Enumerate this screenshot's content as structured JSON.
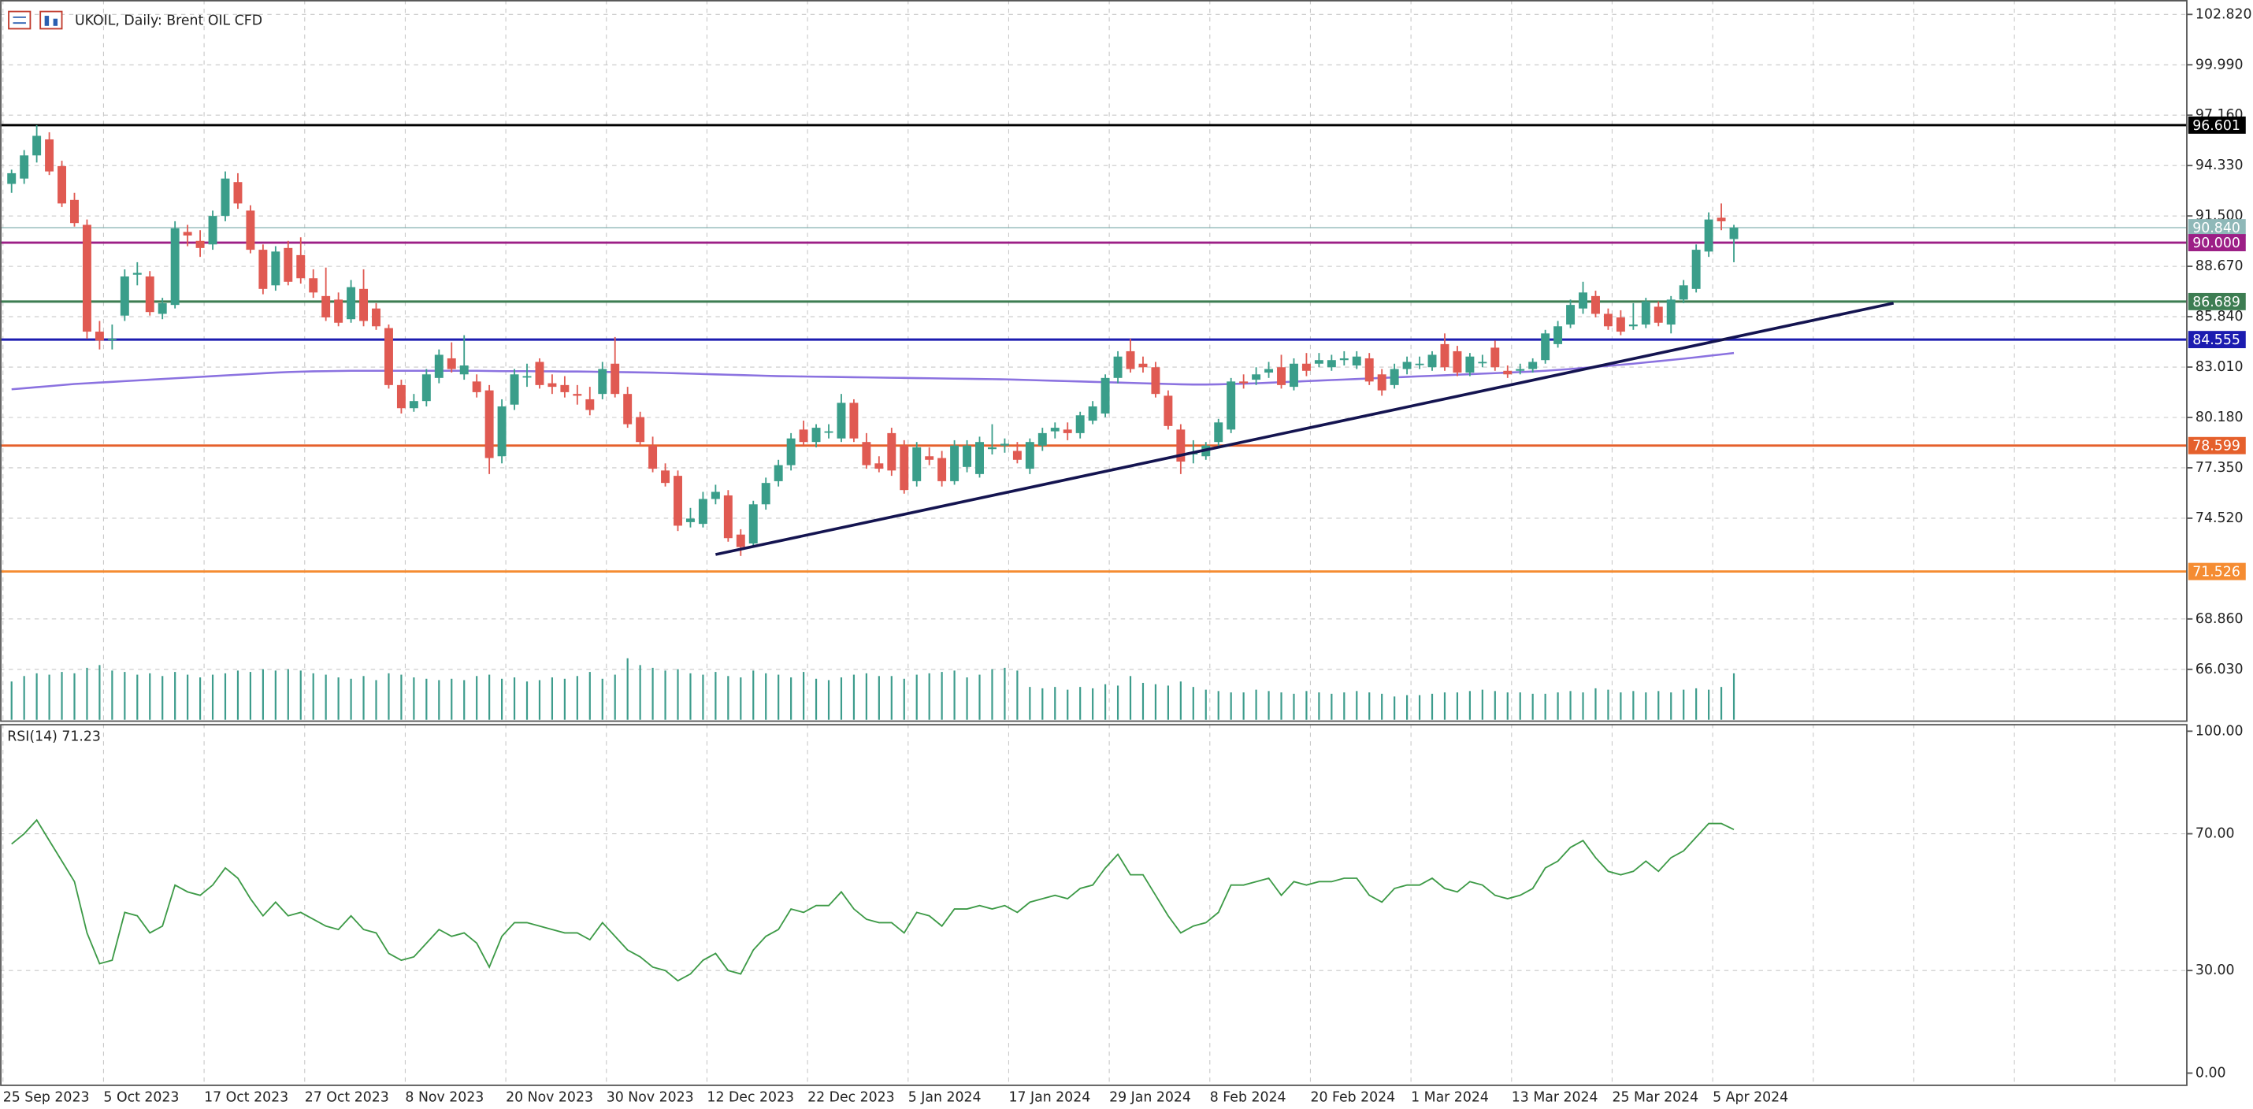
{
  "chart_data": {
    "type": "candlestick",
    "title": "UKOIL, Daily:  Brent OIL CFD",
    "up_color": "#3a9e8a",
    "down_color": "#e05a52",
    "volume_color": "#3d9c8c",
    "ma_color": "#8b72e0",
    "grid": true,
    "ylim": [
      63.12,
      103.63
    ],
    "yticks": [
      {
        "value": 102.82,
        "label": "102.820"
      },
      {
        "value": 99.99,
        "label": "99.990"
      },
      {
        "value": 97.16,
        "label": "97.160"
      },
      {
        "value": 94.33,
        "label": "94.330"
      },
      {
        "value": 91.5,
        "label": "91.500"
      },
      {
        "value": 88.67,
        "label": "88.670"
      },
      {
        "value": 85.84,
        "label": "85.840"
      },
      {
        "value": 83.01,
        "label": "83.010"
      },
      {
        "value": 80.18,
        "label": "80.180"
      },
      {
        "value": 77.35,
        "label": "77.350"
      },
      {
        "value": 74.52,
        "label": "74.520"
      },
      {
        "value": 68.86,
        "label": "68.860"
      },
      {
        "value": 66.03,
        "label": "66.030"
      }
    ],
    "categories": [
      "25 Sep 2023",
      null,
      null,
      null,
      null,
      null,
      null,
      null,
      "5 Oct 2023",
      null,
      null,
      null,
      null,
      null,
      null,
      null,
      "17 Oct 2023",
      null,
      null,
      null,
      null,
      null,
      null,
      null,
      "27 Oct 2023",
      null,
      null,
      null,
      null,
      null,
      null,
      null,
      "8 Nov 2023",
      null,
      null,
      null,
      null,
      null,
      null,
      null,
      "20 Nov 2023",
      null,
      null,
      null,
      null,
      null,
      null,
      null,
      "30 Nov 2023",
      null,
      null,
      null,
      null,
      null,
      null,
      null,
      "12 Dec 2023",
      null,
      null,
      null,
      null,
      null,
      null,
      null,
      "22 Dec 2023",
      null,
      null,
      null,
      null,
      null,
      null,
      null,
      "5 Jan 2024",
      null,
      null,
      null,
      null,
      null,
      null,
      null,
      "17 Jan 2024",
      null,
      null,
      null,
      null,
      null,
      null,
      null,
      "29 Jan 2024",
      null,
      null,
      null,
      null,
      null,
      null,
      null,
      "8 Feb 2024",
      null,
      null,
      null,
      null,
      null,
      null,
      null,
      "20 Feb 2024",
      null,
      null,
      null,
      null,
      null,
      null,
      null,
      "1 Mar 2024",
      null,
      null,
      null,
      null,
      null,
      null,
      null,
      "13 Mar 2024",
      null,
      null,
      null,
      null,
      null,
      null,
      null,
      "25 Mar 2024",
      null,
      null,
      null,
      null,
      null,
      null,
      null,
      "5 Apr 2024",
      null
    ],
    "ohlc": [
      [
        93.3,
        94.1,
        92.8,
        93.9
      ],
      [
        93.6,
        95.2,
        93.3,
        94.9
      ],
      [
        94.9,
        96.6,
        94.5,
        96.0
      ],
      [
        95.8,
        96.2,
        93.8,
        94.0
      ],
      [
        94.3,
        94.6,
        92.0,
        92.2
      ],
      [
        92.4,
        92.8,
        90.9,
        91.1
      ],
      [
        91.0,
        91.3,
        84.6,
        85.0
      ],
      [
        85.0,
        85.6,
        84.0,
        84.5
      ],
      [
        84.6,
        85.4,
        84.0,
        84.6
      ],
      [
        85.9,
        88.5,
        85.6,
        88.1
      ],
      [
        88.2,
        88.9,
        87.6,
        88.3
      ],
      [
        88.1,
        88.4,
        85.9,
        86.1
      ],
      [
        86.0,
        86.9,
        85.7,
        86.6
      ],
      [
        86.5,
        91.2,
        86.3,
        90.8
      ],
      [
        90.6,
        91.0,
        89.8,
        90.4
      ],
      [
        90.1,
        90.7,
        89.2,
        89.7
      ],
      [
        89.9,
        91.8,
        89.6,
        91.5
      ],
      [
        91.5,
        94.0,
        91.2,
        93.6
      ],
      [
        93.4,
        93.9,
        91.9,
        92.2
      ],
      [
        91.8,
        92.1,
        89.4,
        89.6
      ],
      [
        89.6,
        89.9,
        87.1,
        87.4
      ],
      [
        87.6,
        89.8,
        87.3,
        89.5
      ],
      [
        89.7,
        90.1,
        87.6,
        87.8
      ],
      [
        89.3,
        90.3,
        87.7,
        88.0
      ],
      [
        88.0,
        88.5,
        86.9,
        87.2
      ],
      [
        87.0,
        88.6,
        85.6,
        85.8
      ],
      [
        86.8,
        87.2,
        85.3,
        85.5
      ],
      [
        85.7,
        87.9,
        85.5,
        87.5
      ],
      [
        87.4,
        88.5,
        85.3,
        85.6
      ],
      [
        86.3,
        86.6,
        85.1,
        85.3
      ],
      [
        85.2,
        85.4,
        81.8,
        82.0
      ],
      [
        82.0,
        82.3,
        80.4,
        80.7
      ],
      [
        80.7,
        81.5,
        80.5,
        81.1
      ],
      [
        81.1,
        82.9,
        80.8,
        82.6
      ],
      [
        82.4,
        84.0,
        82.1,
        83.7
      ],
      [
        83.5,
        84.4,
        82.7,
        82.9
      ],
      [
        82.6,
        84.8,
        82.3,
        83.1
      ],
      [
        82.2,
        82.6,
        81.3,
        81.6
      ],
      [
        81.7,
        82.0,
        77.0,
        77.9
      ],
      [
        78.0,
        81.2,
        77.6,
        80.8
      ],
      [
        80.9,
        82.9,
        80.6,
        82.6
      ],
      [
        82.5,
        83.2,
        81.9,
        82.5
      ],
      [
        83.3,
        83.5,
        81.8,
        82.0
      ],
      [
        82.1,
        82.6,
        81.5,
        81.9
      ],
      [
        82.0,
        82.5,
        81.3,
        81.6
      ],
      [
        81.5,
        82.0,
        80.9,
        81.4
      ],
      [
        81.2,
        81.9,
        80.3,
        80.6
      ],
      [
        81.5,
        83.3,
        81.2,
        82.9
      ],
      [
        83.2,
        84.7,
        81.3,
        81.5
      ],
      [
        81.5,
        81.9,
        79.6,
        79.8
      ],
      [
        80.2,
        80.5,
        78.6,
        78.8
      ],
      [
        78.6,
        79.1,
        77.1,
        77.3
      ],
      [
        77.2,
        77.6,
        76.3,
        76.5
      ],
      [
        76.9,
        77.2,
        73.8,
        74.1
      ],
      [
        74.3,
        75.1,
        74.0,
        74.5
      ],
      [
        74.2,
        76.0,
        74.0,
        75.6
      ],
      [
        75.6,
        76.4,
        75.3,
        76.0
      ],
      [
        75.8,
        76.1,
        73.2,
        73.4
      ],
      [
        73.6,
        73.9,
        72.4,
        72.9
      ],
      [
        73.1,
        75.5,
        72.9,
        75.3
      ],
      [
        75.3,
        76.8,
        75.0,
        76.5
      ],
      [
        76.6,
        77.8,
        76.3,
        77.5
      ],
      [
        77.5,
        79.3,
        77.2,
        79.0
      ],
      [
        79.5,
        80.0,
        78.6,
        78.8
      ],
      [
        78.8,
        79.8,
        78.5,
        79.6
      ],
      [
        79.4,
        79.8,
        79.0,
        79.4
      ],
      [
        79.0,
        81.5,
        78.8,
        81.0
      ],
      [
        81.0,
        81.2,
        78.8,
        79.0
      ],
      [
        78.8,
        79.3,
        77.3,
        77.5
      ],
      [
        77.6,
        78.0,
        77.1,
        77.3
      ],
      [
        79.3,
        79.6,
        76.9,
        77.2
      ],
      [
        78.6,
        78.9,
        75.9,
        76.1
      ],
      [
        76.6,
        78.8,
        76.3,
        78.5
      ],
      [
        78.0,
        78.5,
        77.5,
        77.8
      ],
      [
        77.9,
        78.3,
        76.3,
        76.6
      ],
      [
        76.6,
        78.9,
        76.4,
        78.6
      ],
      [
        77.4,
        78.9,
        77.1,
        78.6
      ],
      [
        77.0,
        79.1,
        76.8,
        78.8
      ],
      [
        78.4,
        79.8,
        78.1,
        78.5
      ],
      [
        78.6,
        79.0,
        78.2,
        78.7
      ],
      [
        78.3,
        78.8,
        77.6,
        77.8
      ],
      [
        77.3,
        79.0,
        77.0,
        78.8
      ],
      [
        78.6,
        79.6,
        78.3,
        79.3
      ],
      [
        79.4,
        79.9,
        79.0,
        79.6
      ],
      [
        79.5,
        79.9,
        78.9,
        79.3
      ],
      [
        79.3,
        80.5,
        79.0,
        80.3
      ],
      [
        80.0,
        81.1,
        79.8,
        80.8
      ],
      [
        80.4,
        82.6,
        80.2,
        82.4
      ],
      [
        82.4,
        83.9,
        82.1,
        83.6
      ],
      [
        83.9,
        84.6,
        82.7,
        82.9
      ],
      [
        83.2,
        83.6,
        82.7,
        83.0
      ],
      [
        83.0,
        83.3,
        81.3,
        81.5
      ],
      [
        81.4,
        81.7,
        79.5,
        79.7
      ],
      [
        79.5,
        79.8,
        77.0,
        77.7
      ],
      [
        78.1,
        78.9,
        77.6,
        78.2
      ],
      [
        78.0,
        78.8,
        77.8,
        78.6
      ],
      [
        78.8,
        80.1,
        78.5,
        79.9
      ],
      [
        79.5,
        82.4,
        79.3,
        82.2
      ],
      [
        82.2,
        82.6,
        81.8,
        82.1
      ],
      [
        82.3,
        83.0,
        82.0,
        82.6
      ],
      [
        82.7,
        83.3,
        82.4,
        82.9
      ],
      [
        83.0,
        83.7,
        81.8,
        82.0
      ],
      [
        81.9,
        83.5,
        81.7,
        83.2
      ],
      [
        83.2,
        83.8,
        82.5,
        82.8
      ],
      [
        83.2,
        83.8,
        83.0,
        83.4
      ],
      [
        83.0,
        83.7,
        82.8,
        83.4
      ],
      [
        83.4,
        83.9,
        83.1,
        83.5
      ],
      [
        83.1,
        83.9,
        82.9,
        83.6
      ],
      [
        83.5,
        83.8,
        82.0,
        82.2
      ],
      [
        82.6,
        82.9,
        81.4,
        81.7
      ],
      [
        82.0,
        83.2,
        81.8,
        82.9
      ],
      [
        82.9,
        83.6,
        82.6,
        83.3
      ],
      [
        83.2,
        83.6,
        82.9,
        83.2
      ],
      [
        83.0,
        83.9,
        82.8,
        83.7
      ],
      [
        84.3,
        84.9,
        82.8,
        83.0
      ],
      [
        83.9,
        84.2,
        82.5,
        82.7
      ],
      [
        82.7,
        83.8,
        82.5,
        83.6
      ],
      [
        83.3,
        83.7,
        83.0,
        83.3
      ],
      [
        84.1,
        84.5,
        82.8,
        83.0
      ],
      [
        82.8,
        83.1,
        82.4,
        82.6
      ],
      [
        82.8,
        83.2,
        82.6,
        82.9
      ],
      [
        82.9,
        83.5,
        82.7,
        83.3
      ],
      [
        83.4,
        85.1,
        83.2,
        84.9
      ],
      [
        84.3,
        85.6,
        84.1,
        85.3
      ],
      [
        85.4,
        86.8,
        85.2,
        86.5
      ],
      [
        86.3,
        87.8,
        86.0,
        87.2
      ],
      [
        87.0,
        87.3,
        85.8,
        86.0
      ],
      [
        86.0,
        86.3,
        85.1,
        85.3
      ],
      [
        85.8,
        86.2,
        84.8,
        85.0
      ],
      [
        85.3,
        86.6,
        85.1,
        85.4
      ],
      [
        85.4,
        86.9,
        85.2,
        86.7
      ],
      [
        86.4,
        86.7,
        85.3,
        85.5
      ],
      [
        85.4,
        87.0,
        84.9,
        86.8
      ],
      [
        86.8,
        87.9,
        86.6,
        87.6
      ],
      [
        87.4,
        89.9,
        87.2,
        89.6
      ],
      [
        89.5,
        91.7,
        89.2,
        91.3
      ],
      [
        91.4,
        92.2,
        90.7,
        91.2
      ],
      [
        90.2,
        91.0,
        88.9,
        90.84
      ]
    ],
    "volumes": [
      28,
      32,
      34,
      33,
      35,
      34,
      38,
      40,
      36,
      35,
      33,
      34,
      32,
      35,
      33,
      31,
      33,
      34,
      36,
      35,
      37,
      36,
      37,
      36,
      34,
      33,
      31,
      30,
      32,
      29,
      34,
      33,
      31,
      30,
      29,
      30,
      29,
      32,
      33,
      30,
      31,
      28,
      29,
      31,
      30,
      32,
      35,
      30,
      33,
      45,
      40,
      38,
      36,
      37,
      34,
      33,
      35,
      32,
      31,
      36,
      34,
      33,
      31,
      35,
      30,
      29,
      31,
      33,
      34,
      32,
      32,
      30,
      33,
      34,
      35,
      36,
      31,
      33,
      37,
      38,
      36,
      24,
      23,
      24,
      22,
      24,
      23,
      26,
      25,
      32,
      27,
      26,
      25,
      28,
      24,
      22,
      21,
      20,
      20,
      22,
      21,
      20,
      19,
      21,
      20,
      19,
      20,
      21,
      20,
      19,
      17,
      18,
      18,
      19,
      20,
      20,
      21,
      22,
      21,
      20,
      20,
      19,
      19,
      20,
      21,
      20,
      23,
      22,
      20,
      21,
      20,
      21,
      20,
      22,
      23,
      22,
      24,
      34
    ],
    "ma": [
      81.76,
      81.82,
      81.88,
      81.94,
      82.0,
      82.06,
      82.1,
      82.14,
      82.18,
      82.22,
      82.26,
      82.3,
      82.34,
      82.38,
      82.42,
      82.46,
      82.5,
      82.54,
      82.58,
      82.62,
      82.66,
      82.7,
      82.73,
      82.75,
      82.77,
      82.78,
      82.79,
      82.8,
      82.8,
      82.8,
      82.8,
      82.8,
      82.8,
      82.8,
      82.8,
      82.8,
      82.8,
      82.8,
      82.79,
      82.78,
      82.78,
      82.78,
      82.77,
      82.77,
      82.76,
      82.76,
      82.75,
      82.74,
      82.73,
      82.72,
      82.71,
      82.7,
      82.68,
      82.66,
      82.64,
      82.62,
      82.6,
      82.58,
      82.56,
      82.54,
      82.52,
      82.5,
      82.49,
      82.48,
      82.47,
      82.46,
      82.45,
      82.44,
      82.43,
      82.42,
      82.41,
      82.4,
      82.39,
      82.38,
      82.37,
      82.36,
      82.35,
      82.34,
      82.33,
      82.32,
      82.3,
      82.28,
      82.26,
      82.24,
      82.22,
      82.2,
      82.18,
      82.16,
      82.14,
      82.12,
      82.1,
      82.08,
      82.06,
      82.04,
      82.03,
      82.03,
      82.04,
      82.06,
      82.08,
      82.1,
      82.13,
      82.16,
      82.19,
      82.22,
      82.25,
      82.28,
      82.31,
      82.34,
      82.37,
      82.4,
      82.43,
      82.46,
      82.49,
      82.52,
      82.55,
      82.58,
      82.61,
      82.64,
      82.67,
      82.7,
      82.73,
      82.76,
      82.8,
      82.85,
      82.9,
      82.96,
      83.02,
      83.08,
      83.14,
      83.2,
      83.27,
      83.34,
      83.41,
      83.48,
      83.56,
      83.64,
      83.72,
      83.8
    ],
    "levels": [
      {
        "value": 96.601,
        "color": "#000000"
      },
      {
        "value": 90.84,
        "label": "90.840",
        "color": "#8fb8b8"
      },
      {
        "value": 90,
        "label": "90.000",
        "color": "#9c1f86"
      },
      {
        "value": 86.689,
        "color": "#3d7d52"
      },
      {
        "value": 84.555,
        "color": "#1c1cb0"
      },
      {
        "value": 78.599,
        "color": "#e5602c"
      },
      {
        "value": 71.526,
        "color": "#f58c32"
      }
    ],
    "trendline": {
      "x": [
        56,
        149.7
      ],
      "y": [
        72.48,
        86.6
      ],
      "color": "#141450"
    },
    "rsi": {
      "type": "line",
      "title": "RSI(14) 71.23",
      "color": "#3d9a47",
      "ylim": [
        -3.78,
        102.1
      ],
      "yticks": [
        {
          "value": 100,
          "label": "100.00"
        },
        {
          "value": 70,
          "label": "70.00"
        },
        {
          "value": 30,
          "label": "30.00"
        },
        {
          "value": 0,
          "label": "0.00"
        }
      ],
      "values": [
        67,
        70,
        74,
        68,
        62,
        56,
        41,
        32,
        33,
        47,
        46,
        41,
        43,
        55,
        53,
        52,
        55,
        60,
        57,
        51,
        46,
        50,
        46,
        47,
        45,
        43,
        42,
        46,
        42,
        41,
        35,
        33,
        34,
        38,
        42,
        40,
        41,
        38,
        31,
        40,
        44,
        44,
        43,
        42,
        41,
        41,
        39,
        44,
        40,
        36,
        34,
        31,
        30,
        27,
        29,
        33,
        35,
        30,
        29,
        36,
        40,
        42,
        48,
        47,
        49,
        49,
        53,
        48,
        45,
        44,
        44,
        41,
        47,
        46,
        43,
        48,
        48,
        49,
        48,
        49,
        47,
        50,
        51,
        52,
        51,
        54,
        55,
        60,
        64,
        58,
        58,
        52,
        46,
        41,
        43,
        44,
        47,
        55,
        55,
        56,
        57,
        52,
        56,
        55,
        56,
        56,
        57,
        57,
        52,
        50,
        54,
        55,
        55,
        57,
        54,
        53,
        56,
        55,
        52,
        51,
        52,
        54,
        60,
        62,
        66,
        68,
        63,
        59,
        58,
        59,
        62,
        59,
        63,
        65,
        69,
        73,
        73,
        71.23
      ]
    }
  }
}
